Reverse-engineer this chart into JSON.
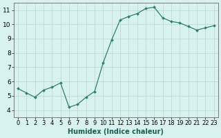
{
  "x": [
    0,
    1,
    2,
    3,
    4,
    5,
    6,
    7,
    8,
    9,
    10,
    11,
    12,
    13,
    14,
    15,
    16,
    17,
    18,
    19,
    20,
    21,
    22,
    23
  ],
  "y": [
    5.5,
    5.2,
    4.9,
    5.4,
    5.6,
    5.9,
    4.2,
    4.4,
    4.9,
    5.3,
    7.3,
    8.9,
    10.3,
    10.55,
    10.75,
    11.1,
    11.2,
    10.45,
    10.2,
    10.1,
    9.85,
    9.6,
    9.75,
    9.9
  ],
  "line_color": "#2e7d6e",
  "marker": "D",
  "marker_size": 2,
  "bg_color": "#d8f2f0",
  "grid_color": "#c0d8d4",
  "xlabel": "Humidex (Indice chaleur)",
  "ylim": [
    3.5,
    11.5
  ],
  "xlim": [
    -0.5,
    23.5
  ],
  "yticks": [
    4,
    5,
    6,
    7,
    8,
    9,
    10,
    11
  ],
  "xticks": [
    0,
    1,
    2,
    3,
    4,
    5,
    6,
    7,
    8,
    9,
    10,
    11,
    12,
    13,
    14,
    15,
    16,
    17,
    18,
    19,
    20,
    21,
    22,
    23
  ],
  "xlabel_fontsize": 7,
  "tick_fontsize": 6.5,
  "spine_color": "#666666",
  "line_width": 0.9
}
